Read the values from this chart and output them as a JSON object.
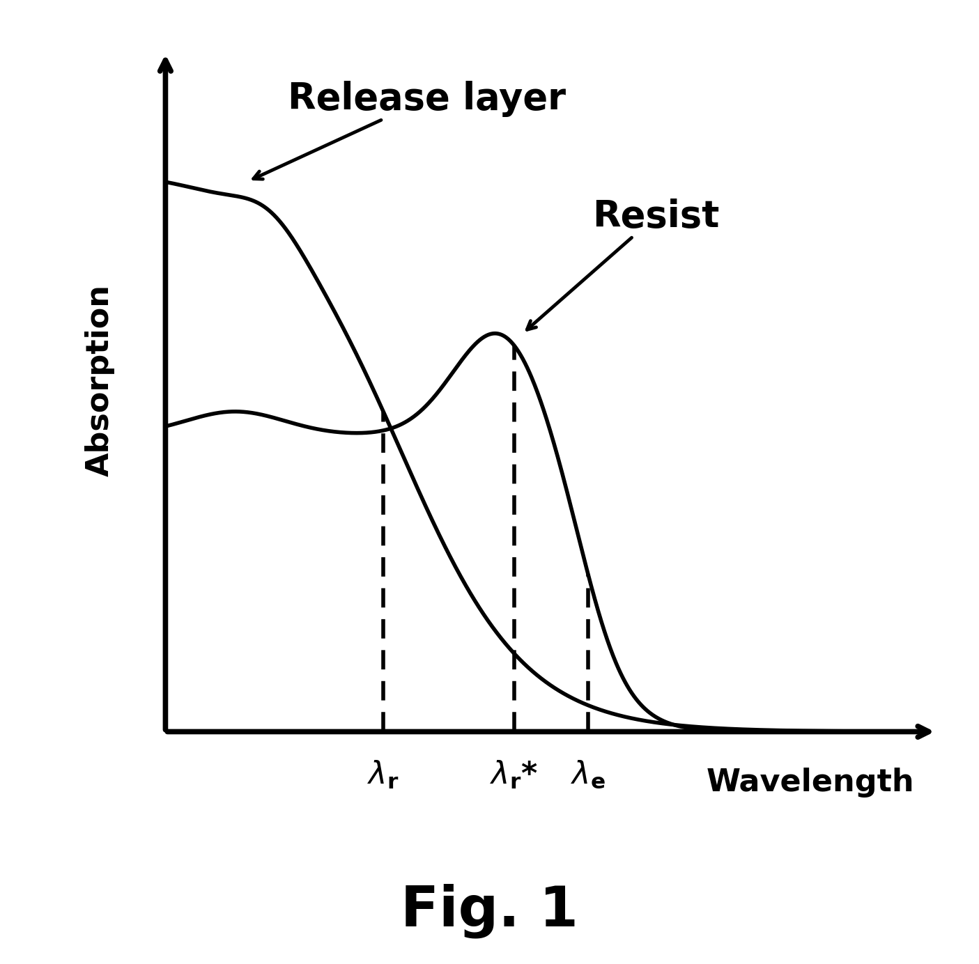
{
  "background_color": "#ffffff",
  "figure_size": [
    14.05,
    13.84
  ],
  "dpi": 100,
  "title": "Fig. 1",
  "title_fontsize": 58,
  "title_fontweight": "bold",
  "ylabel": "Absorption",
  "xlabel": "Wavelength",
  "label_fontsize": 32,
  "release_layer_label": "Release layer",
  "resist_label": "Resist",
  "annotation_fontsize": 38,
  "line_width": 4.0,
  "line_color": "#000000",
  "dashed_color": "#000000",
  "xlim": [
    0,
    10
  ],
  "ylim": [
    0,
    10
  ],
  "lambda_r_x": 3.5,
  "lambda_r_star_x": 5.0,
  "lambda_e_x": 5.85
}
